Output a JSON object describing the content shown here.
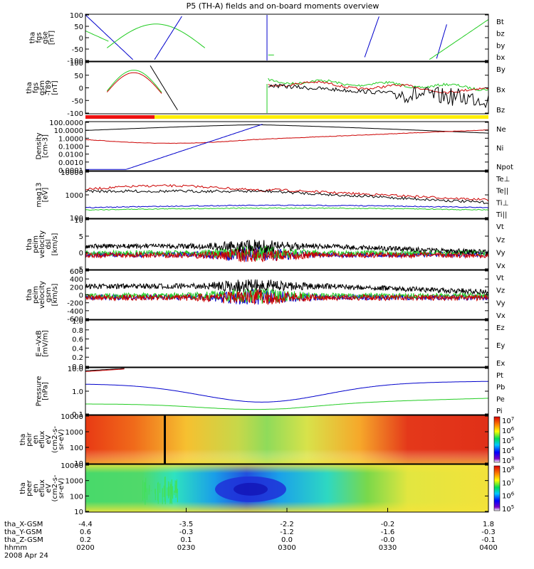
{
  "title": "P5 (TH-A) fields and on-board moments overview",
  "chart_data": [
    {
      "type": "line",
      "panel": "fgs-gse",
      "ylabel": [
        "tha",
        "fgs",
        "gse",
        "[nT]"
      ],
      "ylim": [
        -100,
        100
      ],
      "yticks": [
        "100",
        "50",
        "0",
        "-50",
        "-100"
      ],
      "legend": [
        "Bt",
        "bz",
        "by",
        "bx"
      ],
      "colors": [
        "#000000",
        "#cc0000",
        "#22cc22",
        "#0000cc"
      ]
    },
    {
      "type": "line",
      "panel": "fgs-gsm-t89",
      "ylabel": [
        "tha",
        "fgs",
        "gsm",
        "-T89",
        "[nT]"
      ],
      "ylim": [
        -130,
        120
      ],
      "yticks": [
        "100",
        "50",
        "0",
        "-50",
        "-100"
      ],
      "legend": [
        "By",
        "Bx",
        "Bz"
      ],
      "colors": [
        "#22cc22",
        "#000000",
        "#cc0000"
      ]
    },
    {
      "type": "line",
      "panel": "density",
      "ylabel": [
        "Density",
        "[cm-3]"
      ],
      "scale": "log",
      "yticks": [
        "100.0000",
        "10.0000",
        "1.0000",
        "0.1000",
        "0.0100",
        "0.0010",
        "0.0001"
      ],
      "legend": [
        "Ne",
        "Ni",
        "Npot"
      ],
      "colors": [
        "#cc0000",
        "#000000",
        "#0000cc"
      ]
    },
    {
      "type": "line",
      "panel": "temperature",
      "ylabel": [
        "mag13",
        "[eV]"
      ],
      "scale": "log",
      "yticks": [
        "10000",
        "1000",
        "100"
      ],
      "legend": [
        "Te⊥",
        "Te||",
        "Ti⊥",
        "Ti||"
      ],
      "colors": [
        "#cc0000",
        "#000000",
        "#0000cc",
        "#22cc22"
      ]
    },
    {
      "type": "line",
      "panel": "peim-velocity-dsl",
      "ylabel": [
        "tha",
        "peim",
        "velocity",
        "dsl",
        "[km/s]"
      ],
      "ylim": [
        -5,
        10
      ],
      "yticks": [
        "10",
        "5",
        "0",
        "-5"
      ],
      "legend": [
        "Vt",
        "Vz",
        "Vy",
        "Vx"
      ],
      "colors": [
        "#000000",
        "#cc0000",
        "#22cc22",
        "#0000cc"
      ]
    },
    {
      "type": "line",
      "panel": "peim-velocity-gsm",
      "ylabel": [
        "tha",
        "peim",
        "velocity",
        "gsm",
        "[km/s]"
      ],
      "ylim": [
        -600,
        600
      ],
      "yticks": [
        "600",
        "400",
        "200",
        "0",
        "-200",
        "-400",
        "-600"
      ],
      "legend": [
        "Vt",
        "Vz",
        "Vy",
        "Vx"
      ],
      "colors": [
        "#000000",
        "#cc0000",
        "#22cc22",
        "#0000cc"
      ]
    },
    {
      "type": "line",
      "panel": "exb",
      "ylabel": [
        "E=-VxB",
        "[mV/m]"
      ],
      "ylim": [
        0,
        1
      ],
      "yticks": [
        "1.0",
        "0.8",
        "0.6",
        "0.4",
        "0.2",
        "0.0"
      ],
      "legend": [
        "Ez",
        "Ey",
        "Ex"
      ],
      "colors": [
        "#cc0000",
        "#22cc22",
        "#0000cc"
      ]
    },
    {
      "type": "line",
      "panel": "pressure",
      "ylabel": [
        "Pressure",
        "[nPa]"
      ],
      "scale": "log",
      "yticks": [
        "10.0",
        "1.0",
        "0.1"
      ],
      "legend": [
        "Pt",
        "Pb",
        "Pe",
        "Pi"
      ],
      "colors": [
        "#000000",
        "#cc0000",
        "#22cc22",
        "#0000cc"
      ]
    },
    {
      "type": "heatmap",
      "panel": "peir-en-eflux",
      "ylabel": [
        "tha",
        "peir",
        "en",
        "eflux",
        "eV",
        "(cm2-s-",
        "sr-eV)"
      ],
      "scale": "log",
      "yticks": [
        "10000",
        "1000",
        "100",
        "10"
      ],
      "colorbar_labels": [
        "10",
        "10",
        "10",
        "10",
        "10"
      ],
      "colorbar_exps": [
        "7",
        "6",
        "5",
        "4",
        "3"
      ]
    },
    {
      "type": "heatmap",
      "panel": "peer-en-eflux",
      "ylabel": [
        "tha",
        "peer",
        "en",
        "eflux",
        "eV",
        "(cm2-s-",
        "sr-eV)"
      ],
      "scale": "log",
      "yticks": [
        "10000",
        "1000",
        "100",
        "10"
      ],
      "colorbar_labels": [
        "10",
        "10",
        "10",
        "10"
      ],
      "colorbar_exps": [
        "8",
        "7",
        "6",
        "5"
      ]
    }
  ],
  "footer": {
    "rows": [
      {
        "label": "tha_X-GSM",
        "values": [
          "-4.4",
          "-3.5",
          "-2.2",
          "-0.2",
          "1.8"
        ]
      },
      {
        "label": "tha_Y-GSM",
        "values": [
          "0.6",
          "-0.3",
          "-1.2",
          "-1.6",
          "-0.3"
        ]
      },
      {
        "label": "tha_Z-GSM",
        "values": [
          "0.2",
          "0.1",
          "0.0",
          "-0.0",
          "-0.1"
        ]
      },
      {
        "label": "hhmm",
        "values": [
          "0200",
          "0230",
          "0300",
          "0330",
          "0400"
        ]
      }
    ],
    "date": "2008 Apr 24"
  }
}
